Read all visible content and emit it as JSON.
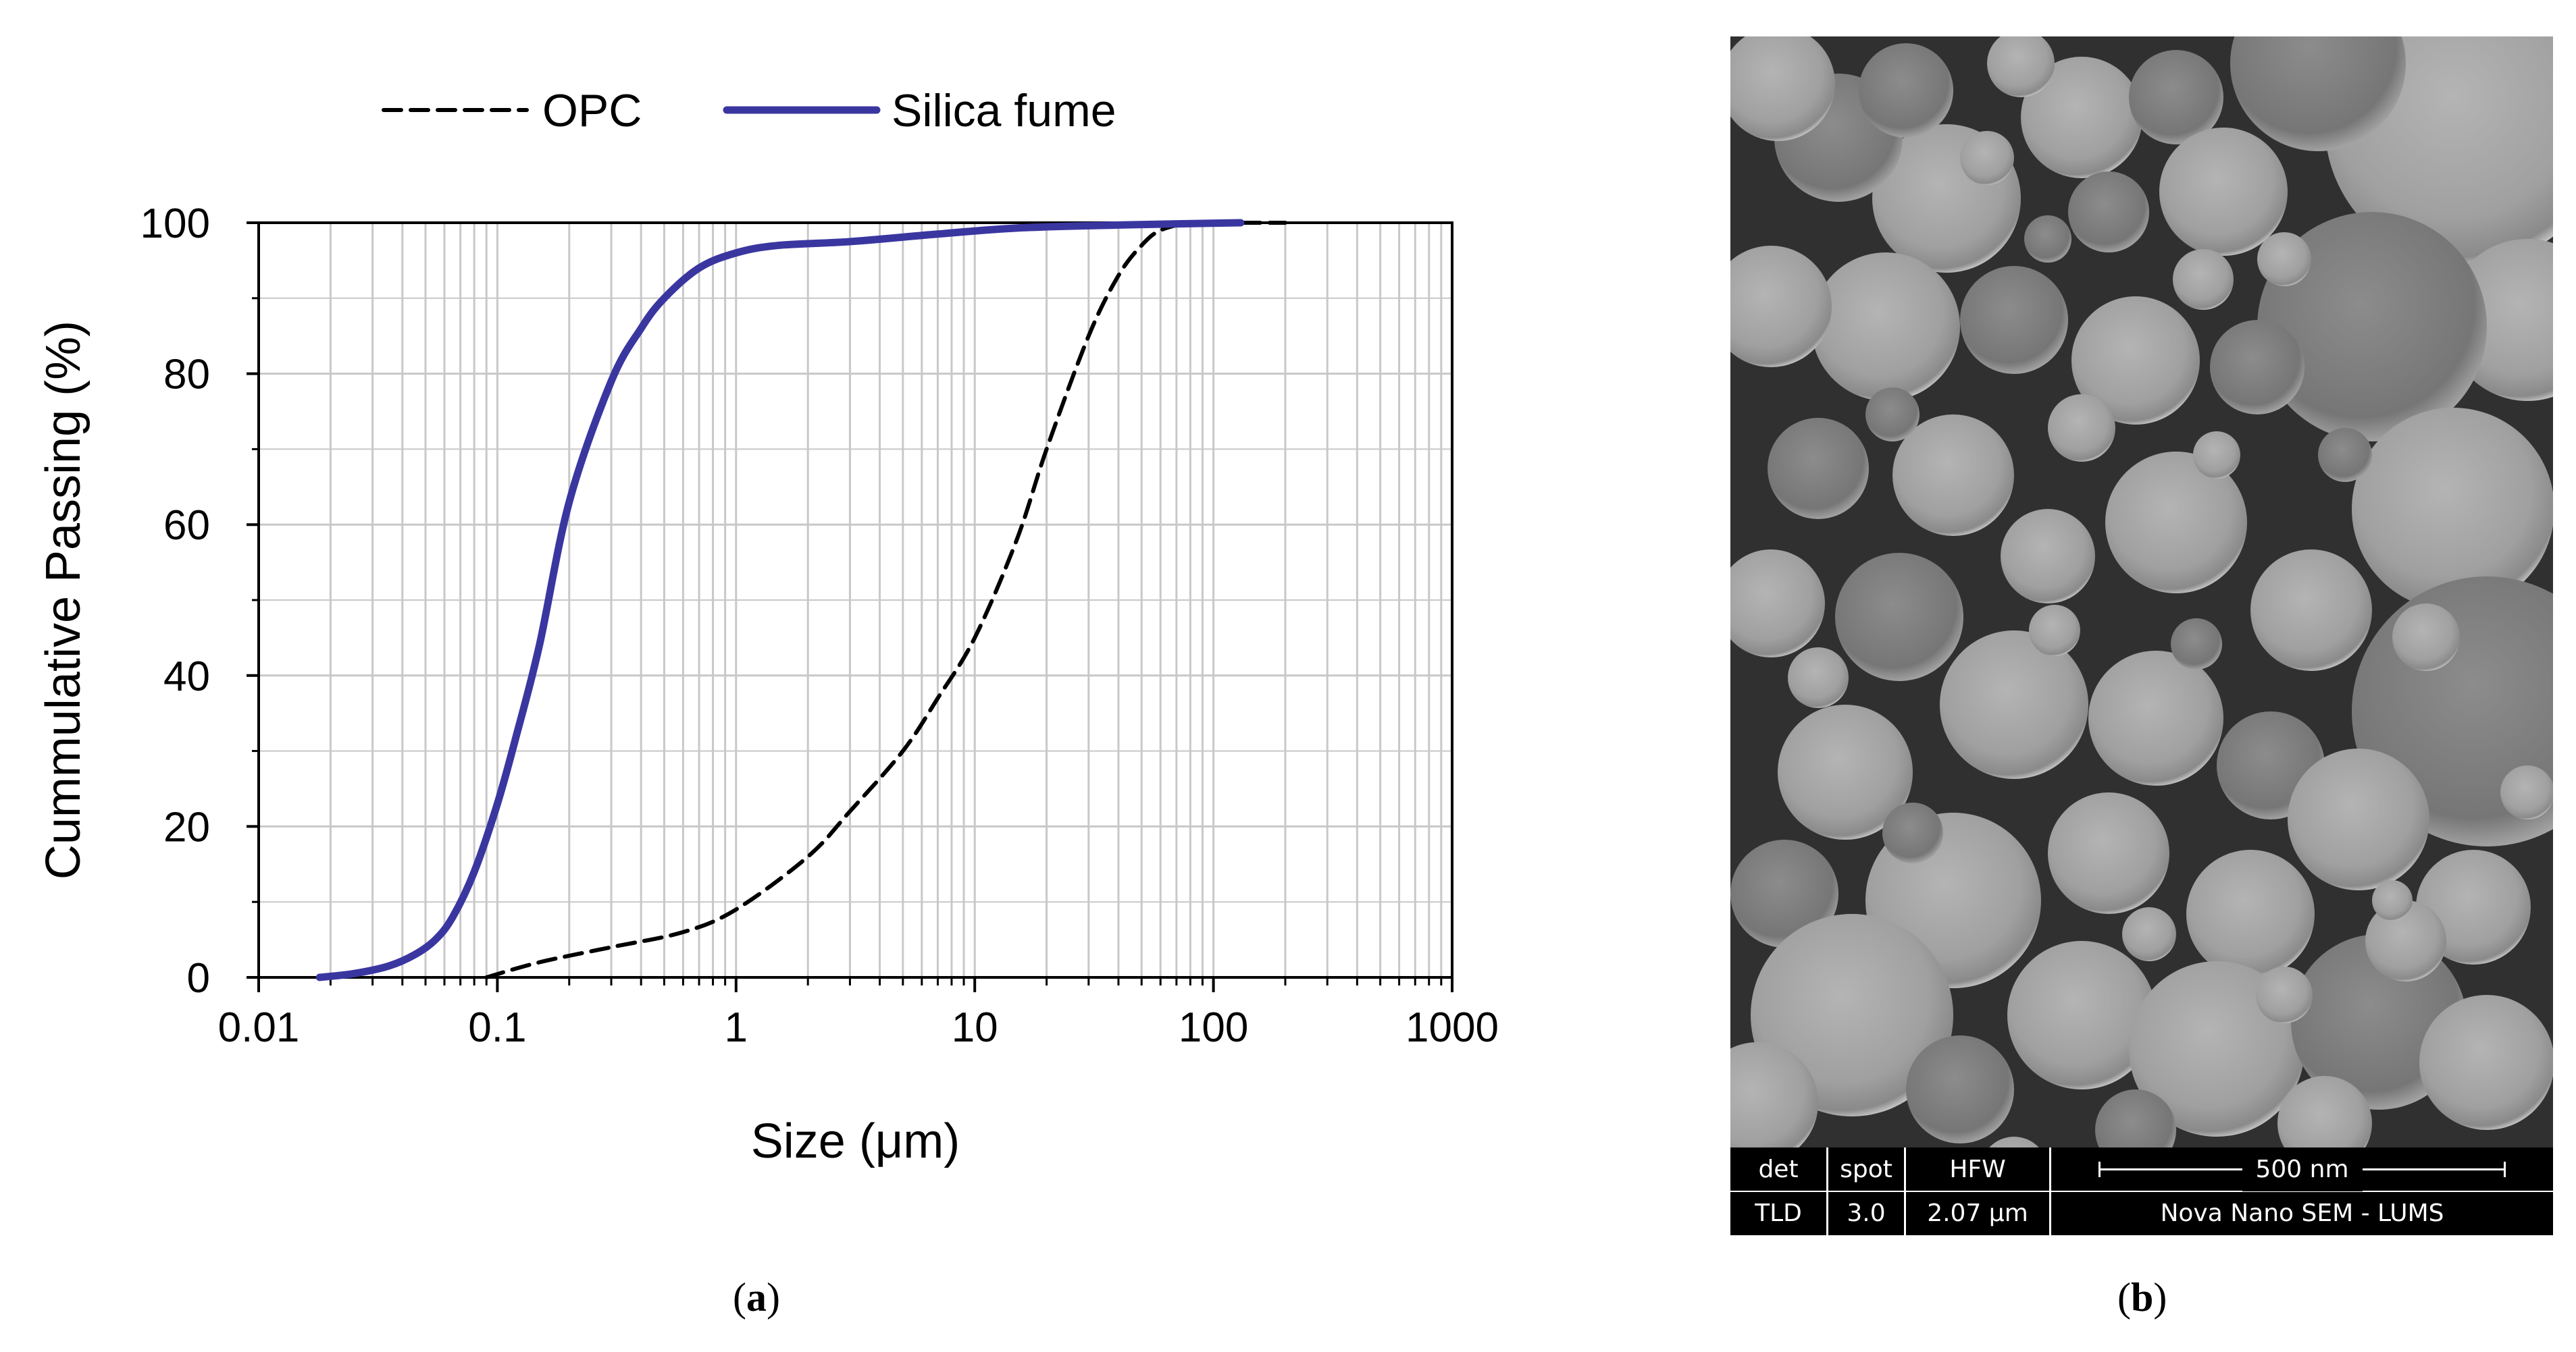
{
  "chart_data": {
    "type": "line",
    "xscale": "log",
    "xlim": [
      0.01,
      1000
    ],
    "ylim": [
      0,
      100
    ],
    "xlabel": "Size (μm)",
    "ylabel": "Cummulative Passing (%)",
    "xticks": [
      "0.01",
      "0.1",
      "1",
      "10",
      "100",
      "1000"
    ],
    "yticks": [
      "0",
      "20",
      "40",
      "60",
      "80",
      "100"
    ],
    "grid": true,
    "legend_position": "top",
    "series": [
      {
        "name": "OPC",
        "style": "dashed",
        "color": "#000000",
        "x": [
          0.09,
          0.15,
          0.3,
          0.6,
          1.0,
          2.0,
          3.0,
          5.0,
          7.0,
          10.0,
          15.0,
          20.0,
          30.0,
          40.0,
          50.0,
          60.0,
          80.0,
          100.0,
          150.0,
          200.0
        ],
        "y": [
          0,
          2,
          4,
          6,
          9,
          16,
          22,
          30,
          37,
          45,
          58,
          70,
          85,
          93,
          97,
          99,
          100,
          100,
          100,
          100
        ]
      },
      {
        "name": "Silica fume",
        "style": "solid",
        "color": "#3a36a0",
        "x": [
          0.018,
          0.025,
          0.035,
          0.045,
          0.055,
          0.065,
          0.08,
          0.1,
          0.12,
          0.15,
          0.2,
          0.3,
          0.4,
          0.5,
          0.7,
          1.0,
          1.5,
          3.0,
          7.0,
          15.0,
          40.0,
          130.0
        ],
        "y": [
          0,
          0.5,
          1.5,
          3,
          5,
          8,
          14,
          23,
          32,
          44,
          63,
          79,
          86,
          90,
          94,
          96,
          97,
          97.5,
          98.5,
          99.3,
          99.7,
          100
        ]
      }
    ]
  },
  "sem": {
    "headers": [
      "det",
      "spot",
      "HFW"
    ],
    "values": [
      "TLD",
      "3.0",
      "2.07 μm"
    ],
    "scale_label": "500 nm",
    "instrument": "Nova Nano SEM - LUMS"
  },
  "labels": {
    "a": "a",
    "b": "b"
  }
}
